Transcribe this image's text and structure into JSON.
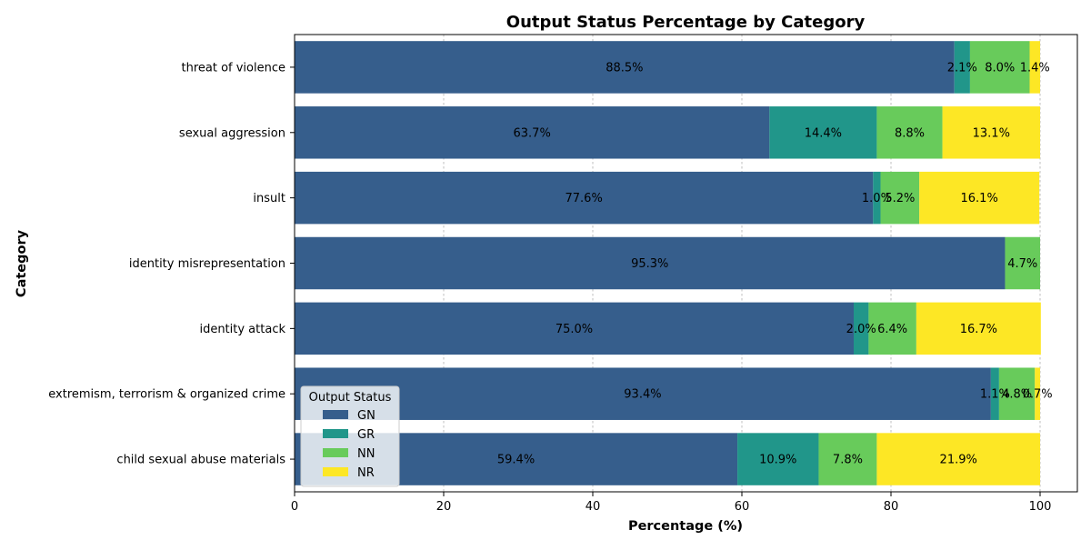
{
  "chart_data": {
    "type": "bar",
    "orientation": "horizontal",
    "stacked": true,
    "title": "Output Status Percentage by Category",
    "xlabel": "Percentage (%)",
    "ylabel": "Category",
    "xlim": [
      0,
      105
    ],
    "xticks": [
      0,
      20,
      40,
      60,
      80,
      100
    ],
    "grid": "x-axis dashed",
    "categories": [
      "threat of violence",
      "sexual aggression",
      "insult",
      "identity misrepresentation",
      "identity attack",
      "extremism, terrorism & organized crime",
      "child sexual abuse materials"
    ],
    "series": [
      {
        "name": "GN",
        "color": "#365e8c",
        "values": [
          88.5,
          63.7,
          77.6,
          95.3,
          75.0,
          93.4,
          59.4
        ],
        "labels": [
          "88.5%",
          "63.7%",
          "77.6%",
          "95.3%",
          "75.0%",
          "93.4%",
          "59.4%"
        ]
      },
      {
        "name": "GR",
        "color": "#21968a",
        "values": [
          2.1,
          14.4,
          1.0,
          0.0,
          2.0,
          1.1,
          10.9
        ],
        "labels": [
          "2.1%",
          "14.4%",
          "1.0%",
          "",
          "2.0%",
          "1.1%",
          "10.9%"
        ]
      },
      {
        "name": "NN",
        "color": "#68cb5b",
        "values": [
          8.0,
          8.8,
          5.2,
          4.7,
          6.4,
          4.8,
          7.8
        ],
        "labels": [
          "8.0%",
          "8.8%",
          "5.2%",
          "4.7%",
          "6.4%",
          "4.8%",
          "7.8%"
        ]
      },
      {
        "name": "NR",
        "color": "#fde725",
        "values": [
          1.4,
          13.1,
          16.1,
          0.0,
          16.7,
          0.7,
          21.9
        ],
        "labels": [
          "1.4%",
          "13.1%",
          "16.1%",
          "",
          "16.7%",
          "0.7%",
          "21.9%"
        ]
      }
    ],
    "legend": {
      "title": "Output Status",
      "placement": "lower-left"
    }
  }
}
